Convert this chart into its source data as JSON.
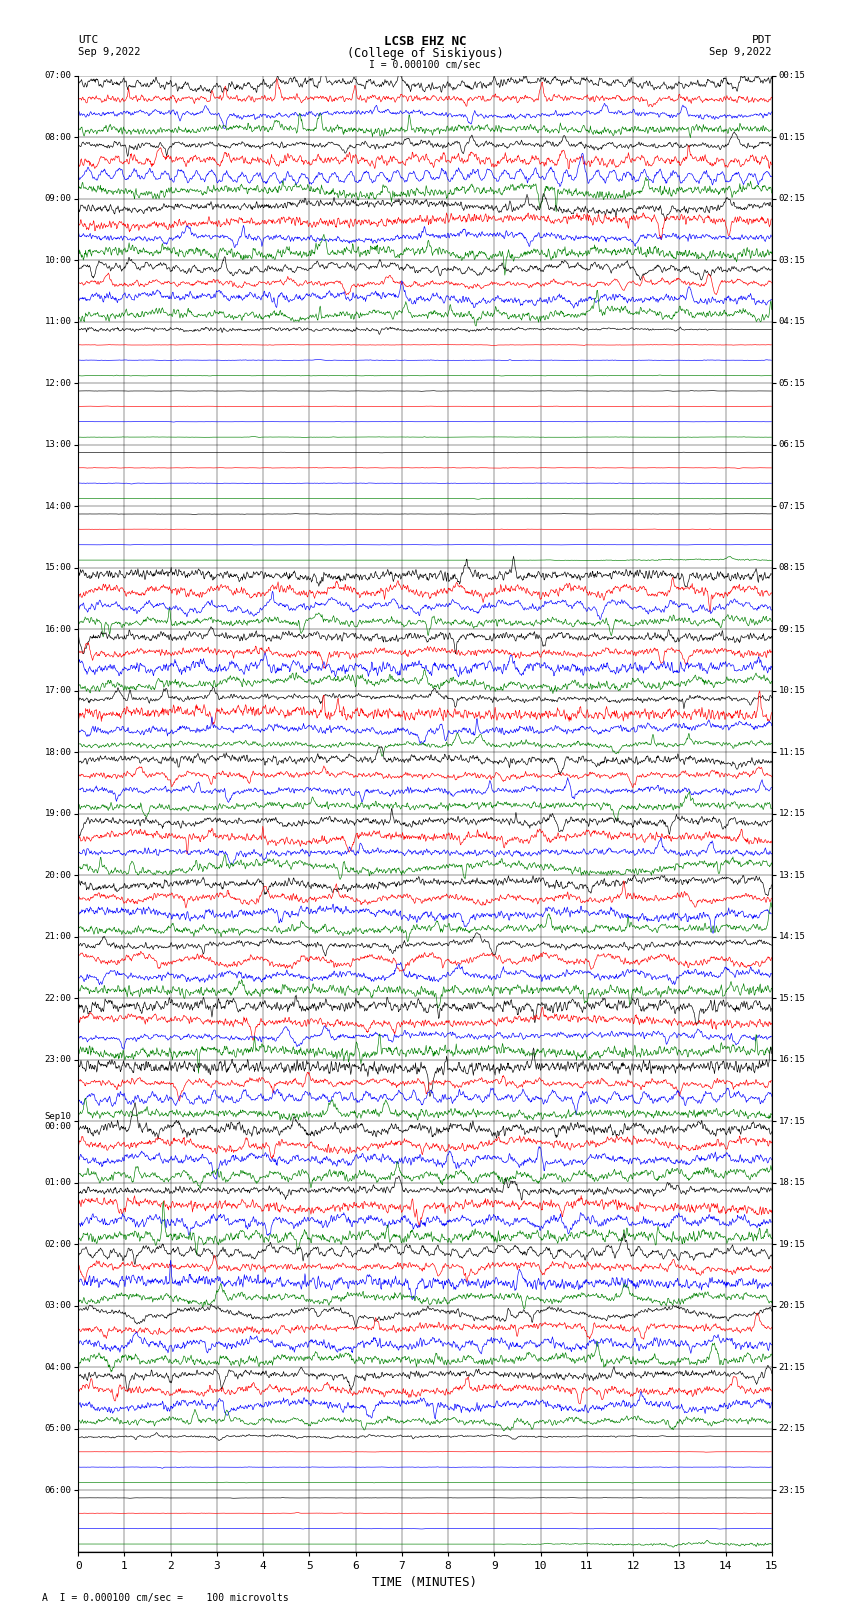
{
  "title_line1": "LCSB EHZ NC",
  "title_line2": "(College of Siskiyous)",
  "scale_label": "I = 0.000100 cm/sec",
  "left_label": "UTC",
  "right_label": "PDT",
  "date_left": "Sep 9,2022",
  "date_right": "Sep 9,2022",
  "xlabel": "TIME (MINUTES)",
  "footer_text": "A  I = 0.000100 cm/sec =    100 microvolts",
  "xlim": [
    0,
    15
  ],
  "xticks": [
    0,
    1,
    2,
    3,
    4,
    5,
    6,
    7,
    8,
    9,
    10,
    11,
    12,
    13,
    14,
    15
  ],
  "bg_color": "#ffffff",
  "colors": [
    "black",
    "red",
    "blue",
    "green"
  ],
  "utc_times": [
    "07:00",
    "08:00",
    "09:00",
    "10:00",
    "11:00",
    "12:00",
    "13:00",
    "14:00",
    "15:00",
    "16:00",
    "17:00",
    "18:00",
    "19:00",
    "20:00",
    "21:00",
    "22:00",
    "23:00",
    "Sep10\n00:00",
    "01:00",
    "02:00",
    "03:00",
    "04:00",
    "05:00",
    "06:00"
  ],
  "pdt_times": [
    "00:15",
    "01:15",
    "02:15",
    "03:15",
    "04:15",
    "05:15",
    "06:15",
    "07:15",
    "08:15",
    "09:15",
    "10:15",
    "11:15",
    "12:15",
    "13:15",
    "14:15",
    "15:15",
    "16:15",
    "17:15",
    "18:15",
    "19:15",
    "20:15",
    "21:15",
    "22:15",
    "23:15"
  ],
  "n_rows": 24,
  "n_traces_per_row": 4,
  "amp": 0.13,
  "n_pts": 1500,
  "seed": 12345
}
